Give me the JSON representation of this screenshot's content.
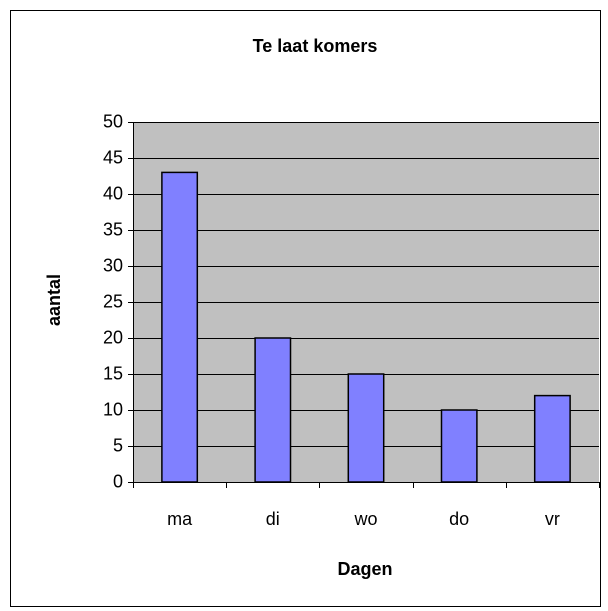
{
  "chart_data": {
    "type": "bar",
    "title": "Te laat komers",
    "x_label": "Dagen",
    "y_label": "aantal",
    "categories": [
      "ma",
      "di",
      "wo",
      "do",
      "vr"
    ],
    "values": [
      43,
      20,
      15,
      10,
      12
    ],
    "color": "#8080ff",
    "ylim": [
      0,
      50
    ],
    "yticks": [
      0,
      5,
      10,
      15,
      20,
      25,
      30,
      35,
      40,
      45,
      50
    ],
    "grid": true
  }
}
